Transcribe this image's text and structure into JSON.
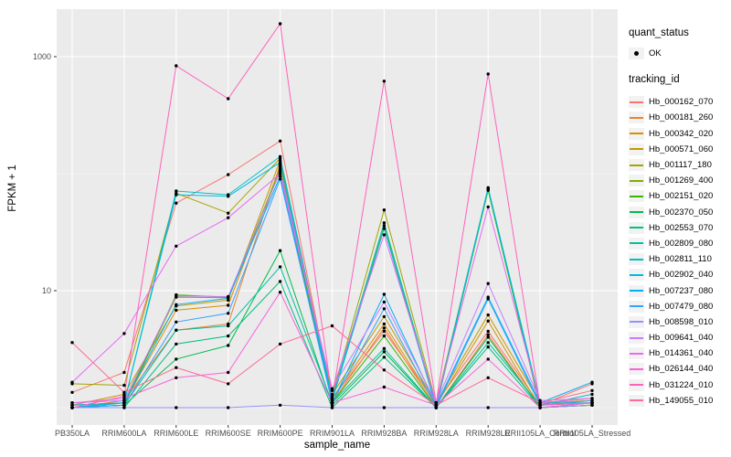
{
  "figure": {
    "background": "#FFFFFF",
    "panel_background": "#EBEBEB",
    "grid_major_color": "#FFFFFF",
    "grid_minor_color": "#F6F6F6",
    "axis_tick_color": "#333333",
    "tick_label_color": "#4D4D4D",
    "point_color": "#000000"
  },
  "axes": {
    "x_title": "sample_name",
    "y_title": "FPKM + 1",
    "y_tick_labels": [
      "10",
      "1000"
    ]
  },
  "legend": {
    "quant_status_title": "quant_status",
    "quant_status_ok_label": "OK",
    "tracking_id_title": "tracking_id"
  },
  "chart_data": {
    "type": "line",
    "title": "",
    "xlabel": "sample_name",
    "ylabel": "FPKM + 1",
    "y_scale": "log10",
    "ylim": [
      0.9,
      2560
    ],
    "y_major_breaks": [
      10,
      1000
    ],
    "y_minor_breaks": [
      1,
      100
    ],
    "grid": true,
    "legend_position": "right",
    "quant_status": "OK",
    "categories": [
      "PB350LA",
      "RRIM600LA",
      "RRIM600LE",
      "RRIM600SE",
      "RRIM600PE",
      "RRIM901LA",
      "RRIM928BA",
      "RRIM928LA",
      "RRIM928LE",
      "RRII105LA_Control",
      "RRII105LA_Stressed"
    ],
    "series": [
      {
        "name": "Hb_000162_070",
        "color": "#F8766D",
        "values": [
          1.35,
          2.0,
          56,
          98,
          190,
          1.2,
          4.5,
          1.1,
          4.5,
          1.05,
          1.6
        ]
      },
      {
        "name": "Hb_000181_260",
        "color": "#EA8331",
        "values": [
          1.0,
          1.15,
          4.6,
          5.2,
          120,
          1.1,
          4.8,
          1.0,
          4.2,
          1.0,
          1.05
        ]
      },
      {
        "name": "Hb_000342_020",
        "color": "#D89000",
        "values": [
          1.0,
          1.1,
          6.8,
          7.5,
          115,
          1.2,
          5.2,
          1.05,
          5.5,
          1.0,
          1.1
        ]
      },
      {
        "name": "Hb_000571_060",
        "color": "#C09B00",
        "values": [
          1.05,
          1.3,
          7.4,
          8.3,
          130,
          1.3,
          6.0,
          1.1,
          6.2,
          1.1,
          1.15
        ]
      },
      {
        "name": "Hb_001117_180",
        "color": "#A3A500",
        "values": [
          1.6,
          1.55,
          68,
          46,
          135,
          1.25,
          49,
          1.1,
          74,
          1.1,
          1.2
        ]
      },
      {
        "name": "Hb_001269_400",
        "color": "#7CAE00",
        "values": [
          1.0,
          1.1,
          8.8,
          8.7,
          110,
          1.15,
          36,
          1.05,
          73,
          1.05,
          1.1
        ]
      },
      {
        "name": "Hb_002151_020",
        "color": "#39B600",
        "values": [
          1.0,
          1.05,
          9.2,
          8.8,
          105,
          1.1,
          4.1,
          1.0,
          72,
          1.0,
          1.05
        ]
      },
      {
        "name": "Hb_002370_050",
        "color": "#00BB4E",
        "values": [
          1.0,
          1.05,
          2.6,
          3.4,
          22,
          1.05,
          3.0,
          1.0,
          4.0,
          1.0,
          1.05
        ]
      },
      {
        "name": "Hb_002553_070",
        "color": "#00BF7D",
        "values": [
          1.0,
          1.0,
          3.5,
          4.1,
          12,
          1.0,
          2.7,
          1.0,
          3.3,
          1.0,
          1.1
        ]
      },
      {
        "name": "Hb_002809_080",
        "color": "#00C1A3",
        "values": [
          1.0,
          1.05,
          4.6,
          5.0,
          16,
          1.1,
          3.2,
          1.0,
          3.6,
          1.05,
          1.3
        ]
      },
      {
        "name": "Hb_002811_110",
        "color": "#00BFC4",
        "values": [
          1.05,
          1.1,
          71,
          66,
          140,
          1.2,
          38,
          1.05,
          76,
          1.1,
          1.1
        ]
      },
      {
        "name": "Hb_002902_040",
        "color": "#00BAE0",
        "values": [
          1.05,
          1.1,
          66,
          64,
          125,
          1.15,
          34,
          1.0,
          75,
          1.05,
          1.1
        ]
      },
      {
        "name": "Hb_007237_080",
        "color": "#00B0F6",
        "values": [
          1.0,
          1.1,
          7.6,
          8.6,
          95,
          1.1,
          9.3,
          1.05,
          8.8,
          1.1,
          1.65
        ]
      },
      {
        "name": "Hb_007479_080",
        "color": "#35A2FF",
        "values": [
          1.0,
          1.05,
          5.4,
          6.4,
          90,
          1.1,
          7.0,
          1.0,
          8.5,
          1.05,
          1.15
        ]
      },
      {
        "name": "Hb_008598_010",
        "color": "#9590FF",
        "values": [
          1.0,
          1.0,
          1.0,
          1.0,
          1.05,
          1.0,
          1.0,
          1.0,
          1.0,
          1.0,
          1.05
        ]
      },
      {
        "name": "Hb_009641_040",
        "color": "#C77CFF",
        "values": [
          1.1,
          1.15,
          9.0,
          8.9,
          105,
          1.45,
          8.0,
          1.1,
          11.5,
          1.15,
          1.2
        ]
      },
      {
        "name": "Hb_014361_040",
        "color": "#E76BF3",
        "values": [
          1.65,
          4.3,
          24,
          42,
          100,
          1.4,
          30,
          1.1,
          52,
          1.1,
          1.2
        ]
      },
      {
        "name": "Hb_026144_040",
        "color": "#FA62DB",
        "values": [
          1.1,
          1.2,
          1.8,
          2.0,
          9.7,
          1.1,
          1.5,
          1.05,
          2.6,
          1.0,
          1.1
        ]
      },
      {
        "name": "Hb_031224_010",
        "color": "#FF62BC",
        "values": [
          1.0,
          1.25,
          835,
          437,
          1910,
          1.2,
          617,
          1.1,
          710,
          1.05,
          1.1
        ]
      },
      {
        "name": "Hb_149055_010",
        "color": "#FF6A98",
        "values": [
          3.6,
          1.35,
          2.2,
          1.6,
          3.5,
          5.0,
          2.1,
          1.05,
          1.8,
          1.1,
          1.4
        ]
      }
    ]
  }
}
